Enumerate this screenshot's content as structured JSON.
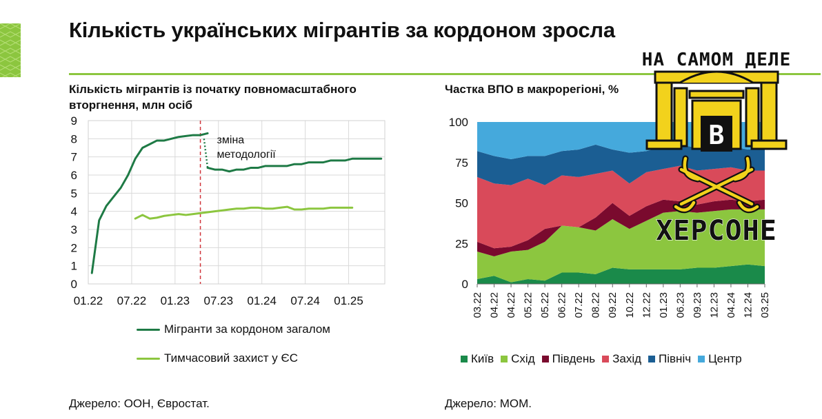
{
  "page": {
    "title": "Кількість українських мігрантів за кордоном зросла"
  },
  "logo": {
    "top_text": "НА САМОМ ДЕЛЕ",
    "letter": "В",
    "bottom_text": "ХЕРСОНЕ"
  },
  "colors": {
    "accent": "#8cc63f",
    "dark_green": "#1e7a45",
    "light_green": "#8cc63f",
    "kyiv": "#1a8a4a",
    "east": "#8cc63f",
    "south": "#7a0a2e",
    "west": "#d94a5a",
    "north": "#1b5e93",
    "center": "#45a9dc"
  },
  "chart_data": [
    {
      "type": "line",
      "title": "Кількість мігрантів із початку повномасштабного вторгнення, млн осіб",
      "title_lines": [
        "Кількість мігрантів із початку повномасштабного",
        "вторгнення, млн осіб"
      ],
      "ylim": [
        0,
        9
      ],
      "y_ticks": [
        "0",
        "1",
        "2",
        "3",
        "4",
        "5",
        "6",
        "7",
        "8",
        "9"
      ],
      "x_ticks": [
        "01.22",
        "07.22",
        "01.23",
        "07.23",
        "01.24",
        "07.24",
        "01.25"
      ],
      "x_tick_index": [
        0,
        6,
        12,
        18,
        24,
        30,
        36
      ],
      "grid": true,
      "annotation": {
        "text_lines": [
          "зміна",
          "методології"
        ],
        "x_index": 15.5
      },
      "series": [
        {
          "name": "Мігранти за кордоном загалом",
          "segments": [
            {
              "x0": 0.5,
              "values": [
                0.6,
                3.5,
                4.3,
                4.8,
                5.3,
                6.0,
                6.9,
                7.5,
                7.7,
                7.9,
                7.9,
                8.0,
                8.1,
                8.15,
                8.2,
                8.2,
                8.3
              ]
            },
            {
              "x0": 16.5,
              "values": [
                6.4,
                6.3,
                6.3,
                6.2,
                6.3,
                6.3,
                6.4,
                6.4,
                6.5,
                6.5,
                6.5,
                6.5,
                6.6,
                6.6,
                6.7,
                6.7,
                6.7,
                6.8,
                6.8,
                6.8,
                6.9,
                6.9,
                6.9,
                6.9,
                6.9
              ]
            }
          ],
          "connector": {
            "x": [
              16.0,
              16.5
            ],
            "values": [
              8.0,
              6.4
            ]
          }
        },
        {
          "name": "Тимчасовий захист у ЄС",
          "segments": [
            {
              "x0": 6.5,
              "values": [
                3.6,
                3.8,
                3.6,
                3.65,
                3.75,
                3.8,
                3.85,
                3.8,
                3.85,
                3.9,
                3.95,
                4.0,
                4.05,
                4.1,
                4.15,
                4.15,
                4.2,
                4.2,
                4.15,
                4.15,
                4.2,
                4.25,
                4.1,
                4.1,
                4.15,
                4.15,
                4.15,
                4.2,
                4.2,
                4.2,
                4.2
              ]
            }
          ]
        }
      ],
      "source": "Джерело: ООН, Євростат."
    },
    {
      "type": "area",
      "stacked": true,
      "title": "Частка ВПО в макрорегіоні, %",
      "ylim": [
        0,
        100
      ],
      "y_ticks": [
        "0",
        "25",
        "50",
        "75",
        "100"
      ],
      "categories": [
        "03.22",
        "04.22",
        "04.22",
        "05.22",
        "05.22",
        "06.22",
        "07.22",
        "08.22",
        "09.22",
        "10.22",
        "12.22",
        "01.23",
        "06.23",
        "09.23",
        "12.23",
        "04.24",
        "12.24",
        "03.25"
      ],
      "series": [
        {
          "name": "Київ",
          "values": [
            3,
            5,
            1,
            3,
            2,
            7,
            7,
            6,
            10,
            9,
            9,
            9,
            9,
            10,
            10,
            11,
            12,
            11
          ]
        },
        {
          "name": "Схід",
          "values": [
            17,
            12,
            19,
            18,
            24,
            29,
            28,
            27,
            30,
            25,
            30,
            35,
            36,
            34,
            35,
            35,
            34,
            35
          ]
        },
        {
          "name": "Південь",
          "values": [
            6,
            5,
            3,
            6,
            8,
            0,
            0,
            8,
            10,
            8,
            9,
            8,
            6,
            5,
            6,
            6,
            5,
            6
          ]
        },
        {
          "name": "Захід",
          "values": [
            40,
            40,
            38,
            38,
            27,
            31,
            31,
            27,
            20,
            20,
            21,
            19,
            22,
            21,
            20,
            20,
            19,
            18
          ]
        },
        {
          "name": "Північ",
          "values": [
            16,
            17,
            16,
            14,
            18,
            15,
            17,
            18,
            13,
            19,
            13,
            14,
            13,
            14,
            13,
            13,
            13,
            13
          ]
        },
        {
          "name": "Центр",
          "values": [
            18,
            21,
            23,
            21,
            21,
            18,
            17,
            14,
            17,
            19,
            18,
            15,
            14,
            16,
            16,
            15,
            17,
            17
          ]
        }
      ],
      "legend_position": "bottom",
      "source": "Джерело: МОМ."
    }
  ]
}
